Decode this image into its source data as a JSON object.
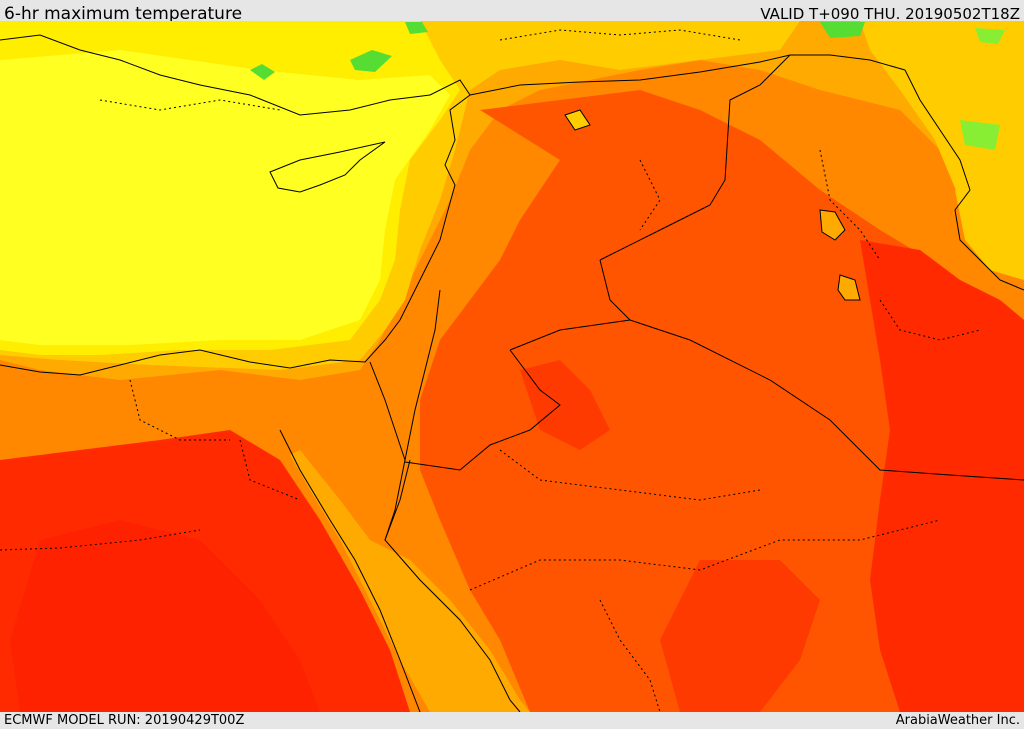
{
  "header": {
    "title": "6-hr maximum temperature",
    "valid": "VALID T+090 THU. 20190502T18Z"
  },
  "footer": {
    "model_run": "ECMWF MODEL RUN: 20190429T00Z",
    "credit": "ArabiaWeather Inc."
  },
  "map": {
    "colors": {
      "green": "#55dd33",
      "light_yellow": "#ffff33",
      "yellow": "#ffee00",
      "gold": "#ffcc00",
      "amber": "#ffaa00",
      "orange": "#ff8800",
      "orange_red": "#ff5500",
      "red": "#ff2a00",
      "borders": "#000000"
    }
  }
}
